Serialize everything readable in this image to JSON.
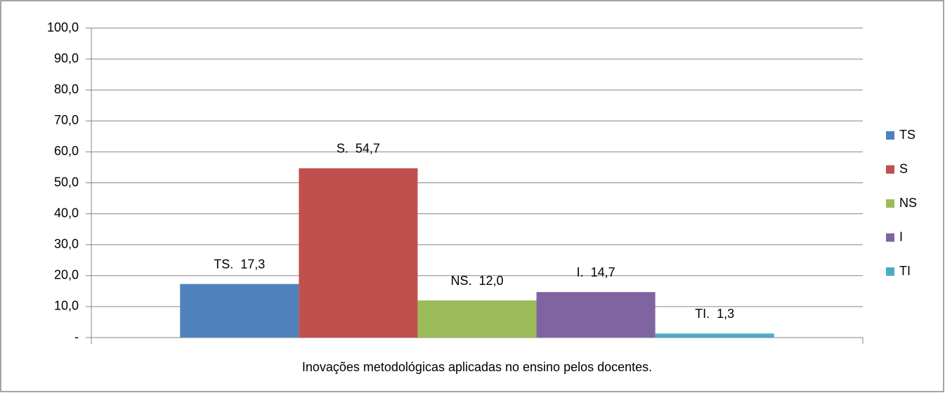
{
  "chart_data": {
    "type": "bar",
    "categories": [
      "Inovações metodológicas aplicadas no ensino pelos docentes."
    ],
    "series": [
      {
        "name": "TS",
        "color": "#4f81bd",
        "values": [
          17.3
        ],
        "value_labels": [
          "TS.  17,3"
        ]
      },
      {
        "name": "S",
        "color": "#c0504d",
        "values": [
          54.7
        ],
        "value_labels": [
          "S.  54,7"
        ]
      },
      {
        "name": "NS",
        "color": "#9bbb59",
        "values": [
          12.0
        ],
        "value_labels": [
          "NS.  12,0"
        ]
      },
      {
        "name": "I",
        "color": "#8064a2",
        "values": [
          14.7
        ],
        "value_labels": [
          "I.  14,7"
        ]
      },
      {
        "name": "TI",
        "color": "#4bacc6",
        "values": [
          1.3
        ],
        "value_labels": [
          "TI.  1,3"
        ]
      }
    ],
    "ylim": [
      0,
      100
    ],
    "yticks": [
      {
        "value": 0,
        "label": "-"
      },
      {
        "value": 10,
        "label": "10,0"
      },
      {
        "value": 20,
        "label": "20,0"
      },
      {
        "value": 30,
        "label": "30,0"
      },
      {
        "value": 40,
        "label": "40,0"
      },
      {
        "value": 50,
        "label": "50,0"
      },
      {
        "value": 60,
        "label": "60,0"
      },
      {
        "value": 70,
        "label": "70,0"
      },
      {
        "value": 80,
        "label": "80,0"
      },
      {
        "value": 90,
        "label": "90,0"
      },
      {
        "value": 100,
        "label": "100,0"
      }
    ],
    "grid": true,
    "legend": "right"
  }
}
